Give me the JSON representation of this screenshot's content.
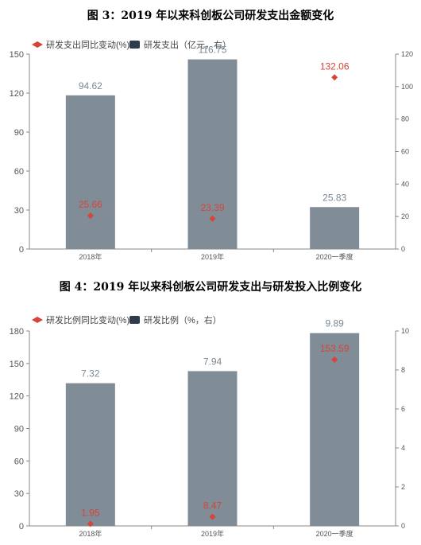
{
  "chart_data": [
    {
      "type": "bar",
      "title": "图 3：2019 年以来科创板公司研发支出金额变化",
      "categories": [
        "2018年",
        "2019年",
        "2020一季度"
      ],
      "legend": [
        "研发支出同比变动(%)",
        "研发支出（亿元，右）"
      ],
      "series": [
        {
          "name": "研发支出（亿元，右）",
          "values": [
            94.62,
            116.75,
            25.83
          ],
          "axis": "right",
          "kind": "bar"
        },
        {
          "name": "研发支出同比变动(%)",
          "values": [
            25.66,
            23.39,
            132.06
          ],
          "axis": "left",
          "kind": "point"
        }
      ],
      "left_ylim": [
        0,
        150
      ],
      "left_ticks": [
        "0",
        "30",
        "60",
        "90",
        "120",
        "150"
      ],
      "right_ylim": [
        0,
        120
      ],
      "right_ticks": [
        "0",
        "20",
        "40",
        "60",
        "80",
        "100",
        "120"
      ],
      "legend_position": "top-left",
      "colors": {
        "bar": "#808c96",
        "point": "#d6443a"
      }
    },
    {
      "type": "bar",
      "title": "图 4：2019 年以来科创板公司研发支出与研发投入比例变化",
      "categories": [
        "2018年",
        "2019年",
        "2020一季度"
      ],
      "legend": [
        "研发比例同比变动(%)",
        "研发比例（%，右）"
      ],
      "series": [
        {
          "name": "研发比例（%，右）",
          "values": [
            7.32,
            7.94,
            9.89
          ],
          "axis": "right",
          "kind": "bar"
        },
        {
          "name": "研发比例同比变动(%)",
          "values": [
            1.95,
            8.47,
            153.59
          ],
          "axis": "left",
          "kind": "point"
        }
      ],
      "left_ylim": [
        0,
        180
      ],
      "left_ticks": [
        "0",
        "30",
        "60",
        "90",
        "120",
        "150",
        "180"
      ],
      "right_ylim": [
        0,
        10
      ],
      "right_ticks": [
        "0",
        "2",
        "4",
        "6",
        "8",
        "10"
      ],
      "legend_position": "top-left",
      "colors": {
        "bar": "#808c96",
        "point": "#d6443a"
      }
    }
  ]
}
